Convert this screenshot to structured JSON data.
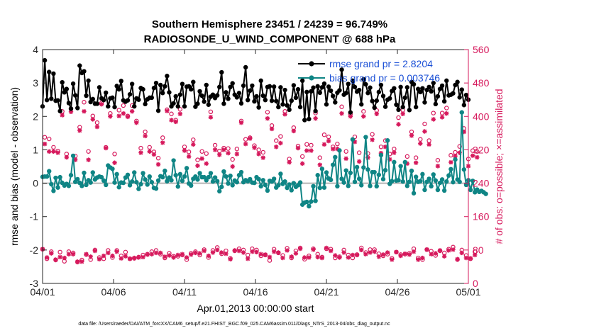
{
  "chart_data": {
    "type": "line",
    "title": "Southern Hemisphere 23451 / 24239 = 96.749%",
    "subtitle": "RADIOSONDE_U_WIND_COMPONENT @ 688 hPa",
    "xlabel": "Apr.01,2013 00:00:00 start",
    "ylabel_left": "rmse and bias (model - observation)",
    "ylabel_right": "# of obs: o=possible; ×=assimilated",
    "footnote": "data file: /Users/raeder/DAI/ATM_forcXX/CAM6_setup/f.e21.FHIST_BGC.f09_025.CAM6assim.011/Diags_NTrS_2013-04/obs_diag_output.nc",
    "xlim": [
      0,
      30
    ],
    "ylim_left": [
      -3,
      4
    ],
    "ylim_right": [
      0,
      560
    ],
    "x_ticks": [
      0,
      5,
      10,
      15,
      20,
      25,
      30
    ],
    "x_tick_labels": [
      "04/01",
      "04/06",
      "04/11",
      "04/16",
      "04/21",
      "04/26",
      "05/01"
    ],
    "y_ticks_left": [
      -3,
      -2,
      -1,
      0,
      1,
      2,
      3,
      4
    ],
    "y_ticks_left_labels": [
      "-3",
      "-2",
      "-1",
      "0",
      "1",
      "2",
      "3",
      "4"
    ],
    "y_ticks_right": [
      0,
      80,
      160,
      240,
      320,
      400,
      480,
      560
    ],
    "y_ticks_right_labels": [
      "0",
      "80",
      "160",
      "240",
      "320",
      "400",
      "480",
      "560"
    ],
    "legend": [
      "rmse grand pr = 2.8204",
      "bias grand pr = 0.003746"
    ],
    "colors": {
      "rmse": "#000000",
      "bias": "#0f8585",
      "obs": "#d6195c",
      "zero_line": "#b4b4b4"
    },
    "series": [
      {
        "name": "rmse",
        "values": [
          2.3,
          3.68,
          2.49,
          3.33,
          2.53,
          3.28,
          2.47,
          2.48,
          2.16,
          3.02,
          2.72,
          2.82,
          2.4,
          2.23,
          2.98,
          2.63,
          2.25,
          3.52,
          3.3,
          3.35,
          2.62,
          3.07,
          2.43,
          2.52,
          2.38,
          2.38,
          2.87,
          2.54,
          2.49,
          2.71,
          2.3,
          2.54,
          2.56,
          2.28,
          2.91,
          2.81,
          3.06,
          2.48,
          2.44,
          2.48,
          2.66,
          2.97,
          2.3,
          2.54,
          2.5,
          2.85,
          2.81,
          2.37,
          2.51,
          2.56,
          2.56,
          2.85,
          3.0,
          2.17,
          2.94,
          2.7,
          2.9,
          3.21,
          2.72,
          2.3,
          2.39,
          2.6,
          2.3,
          2.65,
          2.97,
          2.3,
          2.89,
          2.9,
          2.81,
          3.03,
          2.29,
          2.38,
          2.75,
          2.62,
          2.44,
          2.94,
          2.35,
          2.59,
          2.65,
          2.55,
          2.63,
          2.88,
          3.32,
          2.38,
          2.72,
          2.53,
          2.88,
          2.99,
          2.65,
          2.57,
          2.7,
          2.39,
          2.92,
          3.47,
          2.49,
          2.77,
          2.92,
          2.45,
          2.6,
          2.27,
          3.07,
          2.62,
          2.49,
          2.88,
          2.9,
          2.47,
          2.89,
          2.46,
          2.28,
          2.87,
          2.36,
          2.79,
          2.33,
          2.2,
          2.47,
          2.93,
          2.56,
          2.81,
          2.28,
          3.07,
          1.89,
          2.73,
          1.92,
          2.75,
          2.86,
          2.16,
          2.9,
          2.71,
          2.87,
          2.98,
          2.36,
          2.89,
          2.77,
          2.61,
          2.42,
          2.71,
          2.78,
          3.4,
          2.65,
          2.7,
          2.97,
          2.12,
          3.07,
          2.88,
          2.74,
          2.79,
          2.36,
          3.11,
          2.96,
          2.7,
          2.86,
          2.46,
          2.26,
          2.47,
          2.73,
          2.94,
          2.61,
          2.29,
          2.5,
          2.54,
          2.76,
          2.84,
          2.35,
          2.2,
          2.88,
          2.28,
          2.56,
          2.87,
          2.19,
          3.03,
          2.96,
          2.28,
          2.82,
          2.73,
          2.84,
          2.42,
          2.79,
          2.88,
          2.75,
          3.0,
          2.37,
          2.6,
          2.82,
          2.92,
          2.45,
          3.07,
          2.63,
          2.65,
          2.69,
          2.94,
          3.03,
          2.57,
          2.8,
          2.34,
          2.64,
          2.5
        ]
      },
      {
        "name": "bias",
        "values": [
          0.19,
          0.2,
          0.2,
          0.36,
          -0.03,
          -0.23,
          0.16,
          -0.13,
          0.18,
          0.01,
          -0.07,
          -0.02,
          -0.08,
          0.24,
          0.82,
          0.04,
          0.12,
          0.01,
          -0.08,
          0.31,
          -0.05,
          0.09,
          0.02,
          0.32,
          0.11,
          0.17,
          0.2,
          0.18,
          0.08,
          -0.05,
          0.53,
          0.47,
          0.43,
          0.02,
          0.27,
          -0.12,
          0.02,
          0.01,
          0.17,
          0.25,
          -0.06,
          0.05,
          0.32,
          0.03,
          -0.17,
          -0.03,
          0.3,
          0.11,
          -0.04,
          0.2,
          0.03,
          -0.14,
          -0.16,
          0.08,
          0.21,
          0.18,
          0.37,
          0.06,
          0.17,
          0.09,
          0.68,
          0.24,
          -0.1,
          0.27,
          0.07,
          0.2,
          0.45,
          -0.01,
          -0.07,
          0.13,
          0.2,
          0.11,
          0.3,
          0.18,
          0.18,
          0.09,
          0.18,
          0.3,
          0.05,
          0.17,
          0.06,
          -0.24,
          -0.11,
          0.35,
          0.2,
          -0.01,
          0.22,
          -0.06,
          0.08,
          0.03,
          0.24,
          0.33,
          0.03,
          0.09,
          0.06,
          0.12,
          0.02,
          0.01,
          0.18,
          0.12,
          -0.09,
          0.09,
          -0.05,
          -0.22,
          0.07,
          0.05,
          0.13,
          -0.13,
          -0.06,
          0.28,
          -0.02,
          0.05,
          -0.14,
          -0.04,
          -0.21,
          0.0,
          -0.11,
          -0.06,
          0.02,
          -0.64,
          -0.58,
          -0.56,
          -0.69,
          -0.55,
          -0.09,
          -0.53,
          0.24,
          -0.14,
          0.43,
          -0.13,
          0.32,
          0.14,
          0.1,
          0.55,
          0.78,
          -0.09,
          0.98,
          0.13,
          0.02,
          0.38,
          -0.08,
          0.31,
          1.31,
          0.04,
          0.48,
          0.13,
          -0.06,
          0.47,
          1.38,
          0.41,
          -0.08,
          0.33,
          0.33,
          -0.09,
          0.25,
          0.84,
          0.12,
          0.39,
          1.28,
          -0.02,
          0.06,
          0.63,
          0.08,
          0.09,
          0.51,
          0.05,
          0.63,
          -0.08,
          0.04,
          0.37,
          -0.3,
          0.19,
          0.04,
          0.06,
          0.27,
          -0.2,
          0.04,
          0.13,
          -0.09,
          0.26,
          0.08,
          -0.2,
          0.01,
          0.11,
          -0.22,
          0.05,
          0.23,
          0.42,
          0.03,
          0.71,
          0.11,
          0.04,
          2.12,
          0.41,
          -0.05,
          0.09,
          -0.2,
          0.07,
          -0.27,
          -0.19,
          -0.26,
          -0.23,
          -0.27,
          -0.32
        ]
      },
      {
        "name": "possible",
        "values": [
          82,
          350,
          59,
          346,
          76,
          326,
          56,
          317,
          75,
          412,
          53,
          310,
          76,
          418,
          73,
          305,
          51,
          374,
          56,
          434,
          69,
          316,
          57,
          401,
          80,
          385,
          62,
          432,
          59,
          326,
          79,
          407,
          62,
          310,
          79,
          415,
          66,
          426,
          75,
          401,
          59,
          426,
          60,
          389,
          63,
          324,
          68,
          363,
          70,
          326,
          76,
          315,
          79,
          300,
          70,
          349,
          61,
          416,
          72,
          406,
          65,
          391,
          65,
          417,
          68,
          327,
          57,
          315,
          72,
          344,
          76,
          296,
          68,
          316,
          81,
          311,
          62,
          411,
          79,
          331,
          86,
          317,
          71,
          324,
          78,
          323,
          60,
          297,
          78,
          322,
          83,
          389,
          80,
          345,
          68,
          349,
          83,
          330,
          80,
          320,
          66,
          314,
          68,
          410,
          55,
          378,
          82,
          342,
          73,
          352,
          67,
          412,
          84,
          298,
          61,
          373,
          78,
          329,
          85,
          304,
          58,
          333,
          66,
          331,
          83,
          408,
          70,
          301,
          63,
          356,
          83,
          351,
          82,
          327,
          61,
          334,
          64,
          423,
          80,
          316,
          68,
          405,
          61,
          351,
          69,
          313,
          85,
          412,
          74,
          311,
          81,
          357,
          81,
          414,
          71,
          327,
          66,
          342,
          70,
          310,
          60,
          322,
          75,
          397,
          69,
          415,
          70,
          304,
          72,
          363,
          83,
          301,
          61,
          345,
          57,
          382,
          81,
          342,
          77,
          408,
          67,
          295,
          78,
          408,
          73,
          420,
          82,
          307,
          87,
          314,
          57,
          328,
          80,
          371,
          67,
          298,
          59,
          318,
          76,
          316
        ]
      },
      {
        "name": "assimilated",
        "values": [
          82,
          334,
          62,
          316,
          72,
          316,
          57,
          313,
          63,
          403,
          61,
          302,
          70,
          411,
          70,
          296,
          52,
          366,
          52,
          412,
          70,
          296,
          64,
          393,
          78,
          375,
          58,
          429,
          66,
          324,
          73,
          400,
          66,
          289,
          76,
          401,
          60,
          407,
          65,
          399,
          59,
          412,
          61,
          385,
          62,
          313,
          63,
          353,
          69,
          316,
          70,
          309,
          73,
          285,
          73,
          337,
          64,
          413,
          67,
          391,
          62,
          387,
          68,
          406,
          70,
          318,
          62,
          304,
          69,
          333,
          73,
          282,
          72,
          299,
          78,
          287,
          66,
          398,
          74,
          320,
          80,
          308,
          74,
          320,
          71,
          312,
          58,
          280,
          79,
          310,
          78,
          385,
          74,
          334,
          59,
          347,
          76,
          325,
          75,
          310,
          70,
          301,
          69,
          395,
          63,
          370,
          76,
          327,
          74,
          336,
          61,
          405,
          79,
          290,
          64,
          365,
          72,
          324,
          83,
          287,
          62,
          318,
          62,
          318,
          81,
          395,
          63,
          284,
          61,
          333,
          85,
          341,
          78,
          322,
          67,
          322,
          62,
          407,
          74,
          299,
          62,
          400,
          68,
          339,
          68,
          292,
          80,
          400,
          70,
          301,
          74,
          344,
          76,
          406,
          64,
          312,
          69,
          327,
          74,
          297,
          57,
          313,
          75,
          381,
          66,
          406,
          71,
          287,
          69,
          354,
          76,
          289,
          57,
          335,
          61,
          364,
          81,
          333,
          70,
          393,
          72,
          281,
          79,
          398,
          65,
          407,
          79,
          290,
          81,
          305,
          58,
          313,
          73,
          363,
          61,
          281,
          60,
          306,
          68,
          302
        ]
      }
    ]
  }
}
